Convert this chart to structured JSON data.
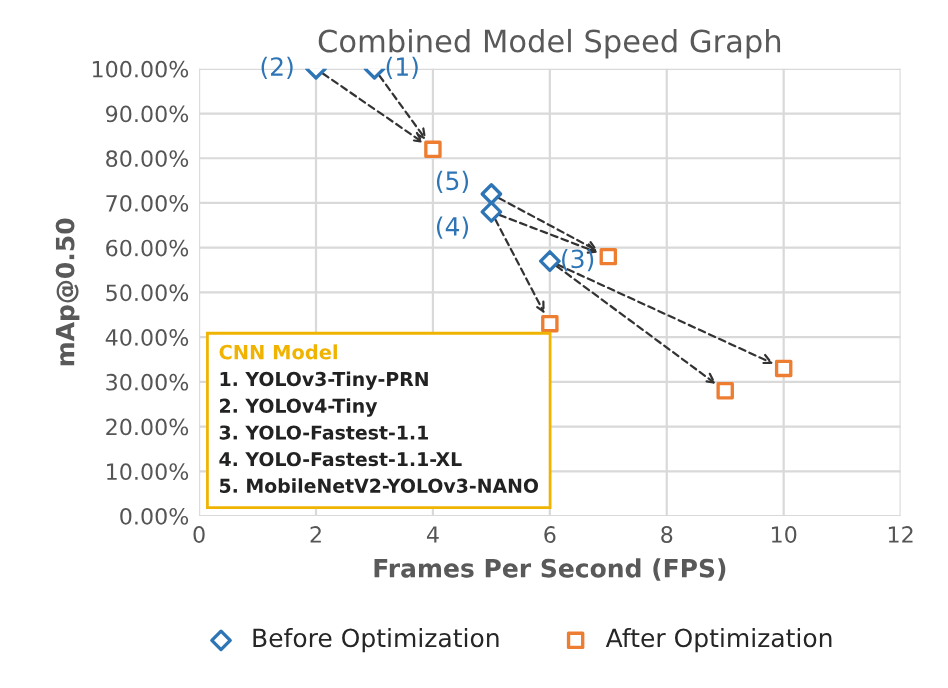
{
  "chart_data": {
    "type": "scatter",
    "title": "Combined Model Speed Graph",
    "xlabel": "Frames Per Second (FPS)",
    "ylabel": "mAp@0.50",
    "xlim": [
      0,
      12
    ],
    "xticks": [
      0,
      2,
      4,
      6,
      8,
      10,
      12
    ],
    "ylim": [
      0,
      100
    ],
    "yticks": [
      {
        "value": 0,
        "label": "0.00%"
      },
      {
        "value": 10,
        "label": "10.00%"
      },
      {
        "value": 20,
        "label": "20.00%"
      },
      {
        "value": 30,
        "label": "30.00%"
      },
      {
        "value": 40,
        "label": "40.00%"
      },
      {
        "value": 50,
        "label": "50.00%"
      },
      {
        "value": 60,
        "label": "60.00%"
      },
      {
        "value": 70,
        "label": "70.00%"
      },
      {
        "value": 80,
        "label": "80.00%"
      },
      {
        "value": 90,
        "label": "90.00%"
      },
      {
        "value": 100,
        "label": "100.00%"
      }
    ],
    "grid": true,
    "legend": "bottom",
    "series": [
      {
        "name": "Before Optimization",
        "color": "#2e75b6",
        "marker": "diamond",
        "x": [
          3,
          2,
          6,
          5,
          5
        ],
        "values": [
          100,
          100,
          57,
          68,
          72
        ]
      },
      {
        "name": "After Optimization",
        "color": "#ed7d31",
        "marker": "square",
        "x": [
          4,
          7,
          6,
          9,
          10
        ],
        "values": [
          82,
          58,
          43,
          28,
          33
        ]
      }
    ],
    "legend_title": "CNN Model",
    "annotations": [
      {
        "text": "(1)",
        "x": 3,
        "y": 100
      },
      {
        "text": "(2)",
        "x": 2,
        "y": 100
      },
      {
        "text": "(3)",
        "x": 6,
        "y": 57
      },
      {
        "text": "(4)",
        "x": 5,
        "y": 68
      },
      {
        "text": "(5)",
        "x": 5,
        "y": 72
      },
      "1. YOLOv3-Tiny-PRN",
      "2. YOLOv4-Tiny",
      "3. YOLO-Fastest-1.1",
      "4. YOLO-Fastest-1.1-XL",
      "5. MobileNetV2-YOLOv3-NANO"
    ]
  }
}
